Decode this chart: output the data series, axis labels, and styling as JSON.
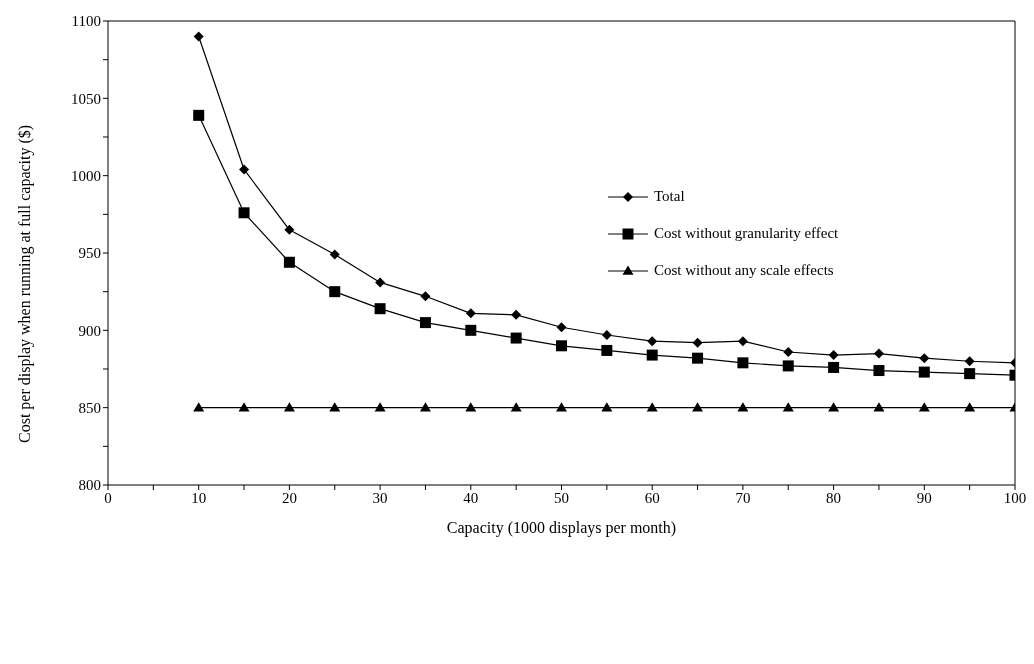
{
  "chart_data": {
    "type": "line",
    "xlabel": "Capacity (1000 displays per month)",
    "ylabel": "Cost per display when running at full capacity ($)",
    "x": [
      10,
      15,
      20,
      25,
      30,
      35,
      40,
      45,
      50,
      55,
      60,
      65,
      70,
      75,
      80,
      85,
      90,
      95,
      100
    ],
    "series": [
      {
        "name": "Total",
        "color": "#000000",
        "marker": "diamond",
        "values": [
          1090,
          1004,
          965,
          949,
          931,
          922,
          911,
          910,
          902,
          897,
          893,
          892,
          893,
          886,
          884,
          885,
          882,
          880,
          879
        ]
      },
      {
        "name": "Cost without granularity effect",
        "color": "#000000",
        "marker": "square",
        "values": [
          1039,
          976,
          944,
          925,
          914,
          905,
          900,
          895,
          890,
          887,
          884,
          882,
          879,
          877,
          876,
          874,
          873,
          872,
          871
        ]
      },
      {
        "name": "Cost without any scale effects",
        "color": "#000000",
        "marker": "triangle",
        "values": [
          850,
          850,
          850,
          850,
          850,
          850,
          850,
          850,
          850,
          850,
          850,
          850,
          850,
          850,
          850,
          850,
          850,
          850,
          850
        ]
      }
    ],
    "xlim": [
      0,
      100
    ],
    "xticks": [
      0,
      {
        "value": 5,
        "label": null
      },
      10,
      {
        "value": 15,
        "label": null
      },
      20,
      {
        "value": 25,
        "label": null
      },
      30,
      {
        "value": 35,
        "label": null
      },
      40,
      {
        "value": 45,
        "label": null
      },
      50,
      {
        "value": 55,
        "label": null
      },
      60,
      {
        "value": 65,
        "label": null
      },
      70,
      {
        "value": 75,
        "label": null
      },
      80,
      {
        "value": 85,
        "label": null
      },
      90,
      {
        "value": 95,
        "label": null
      },
      100
    ],
    "ylim": [
      800,
      1100
    ],
    "yticks": [
      800,
      {
        "value": 825,
        "label": null
      },
      850,
      {
        "value": 875,
        "label": null
      },
      900,
      {
        "value": 925,
        "label": null
      },
      950,
      {
        "value": 975,
        "label": null
      },
      1000,
      {
        "value": 1025,
        "label": null
      },
      1050,
      {
        "value": 1075,
        "label": null
      },
      1100
    ],
    "legend": "right",
    "line_style": "solid",
    "grid": false
  }
}
